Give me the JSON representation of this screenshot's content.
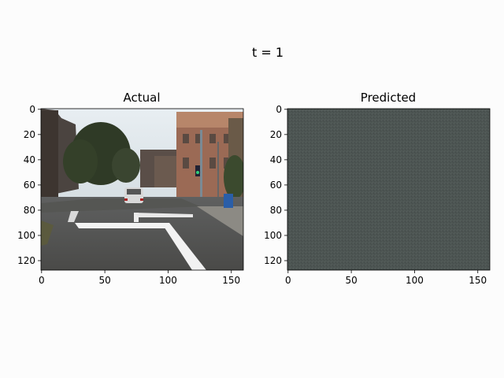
{
  "figure": {
    "suptitle": "t = 1"
  },
  "panels": [
    {
      "title": "Actual",
      "xticks": [
        "0",
        "50",
        "100",
        "150"
      ],
      "yticks": [
        "0",
        "20",
        "40",
        "60",
        "80",
        "100",
        "120"
      ],
      "image": "street scene from a car dashboard: road with white lane markings, houses and trees on both sides, a parked white car, traffic lights on the right"
    },
    {
      "title": "Predicted",
      "xticks": [
        "0",
        "50",
        "100",
        "150"
      ],
      "yticks": [
        "0",
        "20",
        "40",
        "60",
        "80",
        "100",
        "120"
      ],
      "image": "uniform dark grey-green noise frame",
      "fill_color": "#4c5451"
    }
  ],
  "colors": {
    "background": "#fcfcfc",
    "axis": "#000000"
  }
}
